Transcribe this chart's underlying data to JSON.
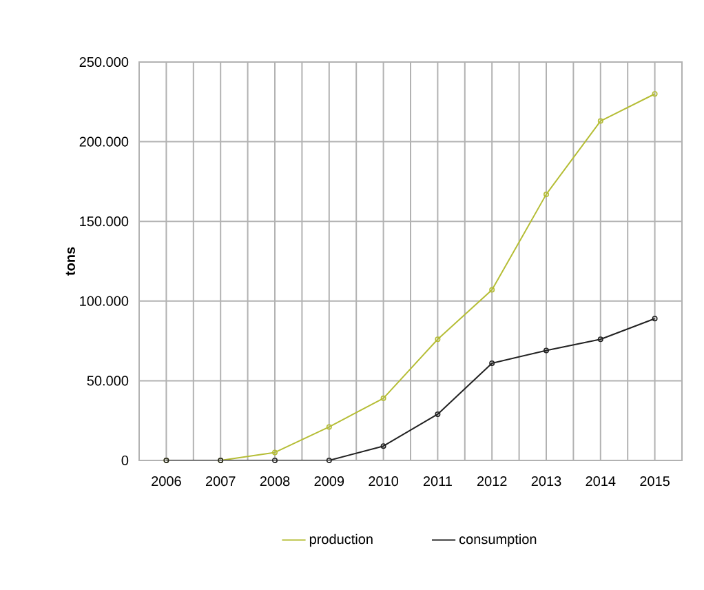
{
  "chart_data": {
    "type": "line",
    "ylabel": "tons",
    "categories": [
      "2006",
      "2007",
      "2008",
      "2009",
      "2010",
      "2011",
      "2012",
      "2013",
      "2014",
      "2015"
    ],
    "series": [
      {
        "name": "production",
        "color": "#b5bd35",
        "values": [
          0,
          0,
          5000,
          21000,
          39000,
          76000,
          107000,
          167000,
          213000,
          230000
        ]
      },
      {
        "name": "consumption",
        "color": "#222222",
        "values": [
          0,
          0,
          0,
          0,
          9000,
          29000,
          61000,
          69000,
          76000,
          89000
        ]
      }
    ],
    "ylim": [
      0,
      250000
    ],
    "yticks": [
      0,
      {
        "value": 50000,
        "label": "50.000"
      },
      {
        "value": 100000,
        "label": "100.000"
      },
      {
        "value": 150000,
        "label": "150.000"
      },
      {
        "value": 200000,
        "label": "200.000"
      },
      {
        "value": 250000,
        "label": "250.000"
      }
    ],
    "grid": true,
    "legend": "bottom",
    "marker": "circle",
    "line_style": "solid"
  }
}
